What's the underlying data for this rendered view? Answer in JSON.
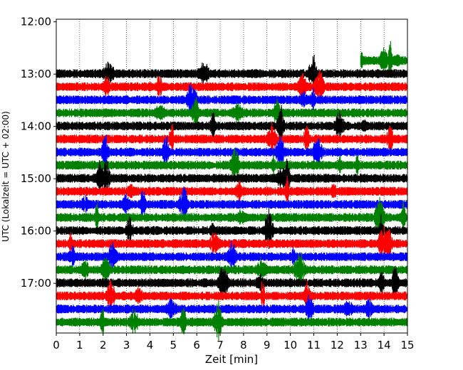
{
  "chart_data": {
    "type": "line",
    "title": "",
    "xlabel": "Zeit  [min]",
    "ylabel": "UTC (Lokalzeit = UTC + 02:00)",
    "xlim": [
      0,
      15
    ],
    "x_ticks": [
      "0",
      "1",
      "2",
      "3",
      "4",
      "5",
      "6",
      "7",
      "8",
      "9",
      "10",
      "11",
      "12",
      "13",
      "14",
      "15"
    ],
    "ylim_minutes_since_midnight_utc": [
      717,
      1077
    ],
    "y_ticks": [
      "12:00",
      "13:00",
      "14:00",
      "15:00",
      "16:00",
      "17:00"
    ],
    "grid": "vertical dotted lines at each minute",
    "trace_interval_min": 15,
    "trace_color_cycle": [
      "#000000",
      "#ff0000",
      "#0000ff",
      "#008000"
    ],
    "series": [
      {
        "start": "12:45",
        "color": "#008000",
        "x_range": [
          13.0,
          15.0
        ]
      },
      {
        "start": "13:00",
        "color": "#000000",
        "x_range": [
          0,
          15
        ]
      },
      {
        "start": "13:15",
        "color": "#ff0000",
        "x_range": [
          0,
          15
        ]
      },
      {
        "start": "13:30",
        "color": "#0000ff",
        "x_range": [
          0,
          15
        ]
      },
      {
        "start": "13:45",
        "color": "#008000",
        "x_range": [
          0,
          15
        ]
      },
      {
        "start": "14:00",
        "color": "#000000",
        "x_range": [
          0,
          15
        ]
      },
      {
        "start": "14:15",
        "color": "#ff0000",
        "x_range": [
          0,
          15
        ]
      },
      {
        "start": "14:30",
        "color": "#0000ff",
        "x_range": [
          0,
          15
        ]
      },
      {
        "start": "14:45",
        "color": "#008000",
        "x_range": [
          0,
          15
        ]
      },
      {
        "start": "15:00",
        "color": "#000000",
        "x_range": [
          0,
          15
        ]
      },
      {
        "start": "15:15",
        "color": "#ff0000",
        "x_range": [
          0,
          15
        ]
      },
      {
        "start": "15:30",
        "color": "#0000ff",
        "x_range": [
          0,
          15
        ]
      },
      {
        "start": "15:45",
        "color": "#008000",
        "x_range": [
          0,
          15
        ]
      },
      {
        "start": "16:00",
        "color": "#000000",
        "x_range": [
          0,
          15
        ]
      },
      {
        "start": "16:15",
        "color": "#ff0000",
        "x_range": [
          0,
          15
        ]
      },
      {
        "start": "16:30",
        "color": "#0000ff",
        "x_range": [
          0,
          15
        ]
      },
      {
        "start": "16:45",
        "color": "#008000",
        "x_range": [
          0,
          15
        ]
      },
      {
        "start": "17:00",
        "color": "#000000",
        "x_range": [
          0,
          15
        ]
      },
      {
        "start": "17:15",
        "color": "#ff0000",
        "x_range": [
          0,
          15
        ]
      },
      {
        "start": "17:30",
        "color": "#0000ff",
        "x_range": [
          0,
          15
        ]
      },
      {
        "start": "17:45",
        "color": "#008000",
        "x_range": [
          0,
          15
        ]
      }
    ]
  }
}
